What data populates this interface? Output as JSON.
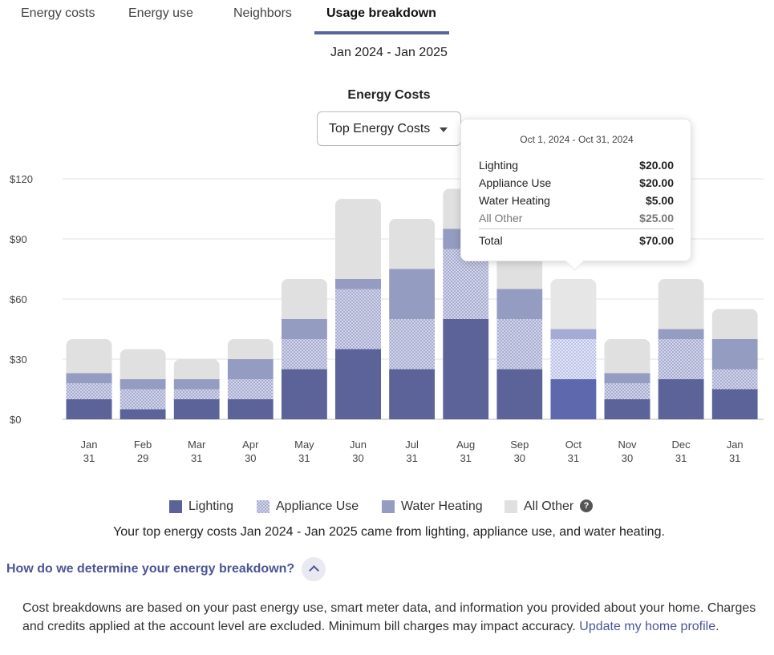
{
  "tabs": [
    {
      "label": "Energy costs",
      "active": false
    },
    {
      "label": "Energy use",
      "active": false
    },
    {
      "label": "Neighbors",
      "active": false
    },
    {
      "label": "Usage breakdown",
      "active": true
    }
  ],
  "date_range": "Jan 2024 - Jan 2025",
  "chart_title": "Energy Costs",
  "dropdown": {
    "selected": "Top Energy Costs",
    "icon": "caret-down-icon"
  },
  "tooltip": {
    "date": "Oct 1, 2024 - Oct 31, 2024",
    "rows": [
      {
        "label": "Lighting",
        "value": "$20.00"
      },
      {
        "label": "Appliance Use",
        "value": "$20.00"
      },
      {
        "label": "Water Heating",
        "value": "$5.00"
      },
      {
        "label": "All Other",
        "value": "$25.00"
      }
    ],
    "total_label": "Total",
    "total_value": "$70.00"
  },
  "legend": [
    {
      "label": "Lighting",
      "color": "#5b6399"
    },
    {
      "label": "Appliance Use",
      "color": "#c9cbe2"
    },
    {
      "label": "Water Heating",
      "color": "#959cc1"
    },
    {
      "label": "All Other",
      "color": "#e0e0e0"
    }
  ],
  "legend_help_icon": "?",
  "summary": "Your top energy costs Jan 2024 - Jan 2025 came from lighting, appliance use, and water heating.",
  "faq": {
    "title": "How do we determine your energy breakdown?",
    "toggle_icon": "chevron-up-icon",
    "body": "Cost breakdowns are based on your past energy use, smart meter data, and information you provided about your home. Charges and credits applied at the account level are excluded. Minimum bill charges may impact accuracy.",
    "link": "Update my home profile",
    "link_suffix": "."
  },
  "chart_data": {
    "type": "bar",
    "stacked": true,
    "categories": [
      "Jan 31",
      "Feb 29",
      "Mar 31",
      "Apr 30",
      "May 31",
      "Jun 30",
      "Jul 31",
      "Aug 31",
      "Sep 30",
      "Oct 31",
      "Nov 30",
      "Dec 31",
      "Jan 31"
    ],
    "category_lines": [
      [
        "Jan",
        "31"
      ],
      [
        "Feb",
        "29"
      ],
      [
        "Mar",
        "31"
      ],
      [
        "Apr",
        "30"
      ],
      [
        "May",
        "31"
      ],
      [
        "Jun",
        "30"
      ],
      [
        "Jul",
        "31"
      ],
      [
        "Aug",
        "31"
      ],
      [
        "Sep",
        "30"
      ],
      [
        "Oct",
        "31"
      ],
      [
        "Nov",
        "30"
      ],
      [
        "Dec",
        "31"
      ],
      [
        "Jan",
        "31"
      ]
    ],
    "series": [
      {
        "name": "Lighting",
        "values": [
          10,
          5,
          10,
          10,
          25,
          35,
          25,
          50,
          25,
          20,
          10,
          20,
          15
        ]
      },
      {
        "name": "Appliance Use",
        "values": [
          8,
          10,
          5,
          10,
          15,
          30,
          25,
          35,
          25,
          20,
          8,
          20,
          10
        ]
      },
      {
        "name": "Water Heating",
        "values": [
          5,
          5,
          5,
          10,
          10,
          5,
          25,
          10,
          15,
          5,
          5,
          5,
          15
        ]
      },
      {
        "name": "All Other",
        "values": [
          17,
          15,
          10,
          10,
          20,
          40,
          25,
          20,
          25,
          25,
          17,
          25,
          15
        ]
      }
    ],
    "yticks": [
      "$0",
      "$30",
      "$60",
      "$90",
      "$120"
    ],
    "ylim": [
      0,
      120
    ],
    "grid": true,
    "highlighted_category_index": 9
  }
}
